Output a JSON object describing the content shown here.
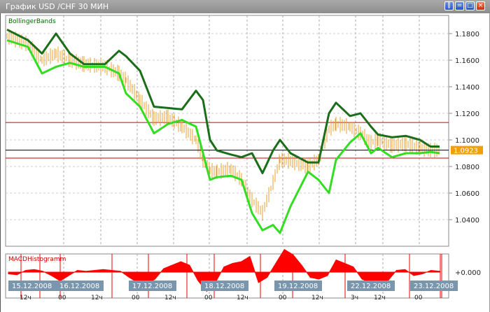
{
  "window": {
    "title": "График USD /CHF  30 МИН",
    "buttons": [
      "tile-icon",
      "restore-icon",
      "maximize-icon",
      "close-icon"
    ]
  },
  "chart_data": [
    {
      "type": "line",
      "title": "BollingerBands",
      "ylim": [
        1.025,
        1.19
      ],
      "yticks": [
        "1.1800",
        "1.1600",
        "1.1400",
        "1.1200",
        "1.1000",
        "1.0800",
        "1.0600",
        "1.0400"
      ],
      "current_price": "1.0923",
      "current_price_value": 1.0923,
      "levels": [
        1.1131,
        1.0863
      ],
      "colors": {
        "upper": "#1a6e1a",
        "lower": "#33dd22",
        "price": "#e8a030",
        "level": "#cc0000",
        "current": "#000000",
        "label_bg": "#f0a000"
      },
      "x": [
        0,
        30,
        50,
        70,
        90,
        110,
        140,
        160,
        170,
        190,
        210,
        230,
        250,
        270,
        280,
        290,
        300,
        320,
        335,
        350,
        365,
        380,
        390,
        405,
        430,
        445,
        460,
        470,
        490,
        505,
        520,
        530,
        550,
        570,
        590,
        605,
        618
      ],
      "upper": [
        1.183,
        1.175,
        1.165,
        1.18,
        1.165,
        1.157,
        1.157,
        1.167,
        1.163,
        1.152,
        1.125,
        1.124,
        1.123,
        1.137,
        1.13,
        1.1,
        1.092,
        1.089,
        1.087,
        1.09,
        1.075,
        1.092,
        1.1,
        1.09,
        1.083,
        1.083,
        1.12,
        1.128,
        1.118,
        1.12,
        1.11,
        1.104,
        1.102,
        1.103,
        1.1,
        1.095,
        1.095
      ],
      "lower": [
        1.175,
        1.17,
        1.15,
        1.155,
        1.158,
        1.155,
        1.155,
        1.15,
        1.135,
        1.125,
        1.105,
        1.112,
        1.115,
        1.11,
        1.09,
        1.07,
        1.072,
        1.073,
        1.07,
        1.045,
        1.032,
        1.036,
        1.03,
        1.05,
        1.076,
        1.07,
        1.06,
        1.085,
        1.098,
        1.105,
        1.09,
        1.094,
        1.087,
        1.09,
        1.09,
        1.091,
        1.09
      ],
      "price": [
        1.178,
        1.172,
        1.16,
        1.165,
        1.16,
        1.157,
        1.155,
        1.15,
        1.145,
        1.13,
        1.116,
        1.117,
        1.11,
        1.1,
        1.085,
        1.077,
        1.076,
        1.078,
        1.07,
        1.055,
        1.045,
        1.068,
        1.085,
        1.084,
        1.08,
        1.085,
        1.108,
        1.112,
        1.11,
        1.105,
        1.098,
        1.1,
        1.096,
        1.097,
        1.094,
        1.092,
        1.0923
      ]
    },
    {
      "type": "bar",
      "title": "MACDHistogramm",
      "zero_label": "+0.000",
      "color": "#ff0000",
      "values": [
        -0.1,
        -0.15,
        0.1,
        0.15,
        0.05,
        -0.2,
        -0.5,
        -0.2,
        0.1,
        0.05,
        0.1,
        0.15,
        0.1,
        0.05,
        -0.3,
        -0.6,
        -0.7,
        -0.4,
        0.2,
        0.4,
        0.6,
        0.4,
        -0.5,
        -1.1,
        -0.6,
        0.3,
        0.5,
        0.6,
        0.9,
        -0.6,
        -0.3,
        0.5,
        1.3,
        1.0,
        0.4,
        -0.3,
        -0.4,
        -0.2,
        0.7,
        0.5,
        0.3,
        -0.4,
        -0.6,
        -0.7,
        -0.5,
        0.1,
        0.15,
        -0.2,
        -0.1,
        0.1,
        0.05
      ]
    },
    {
      "type": "axis",
      "dates": [
        "15.12.2008",
        "16.12.2008",
        "17.12.2008",
        "18.12.2008",
        "19.12.2008",
        "22.12.2008",
        "23.12.2008"
      ],
      "hours": [
        "12ч",
        "00",
        "12ч",
        "00",
        "12ч",
        "00",
        "12ч",
        "00",
        "12ч",
        "3ч",
        "12ч",
        "00"
      ]
    }
  ]
}
